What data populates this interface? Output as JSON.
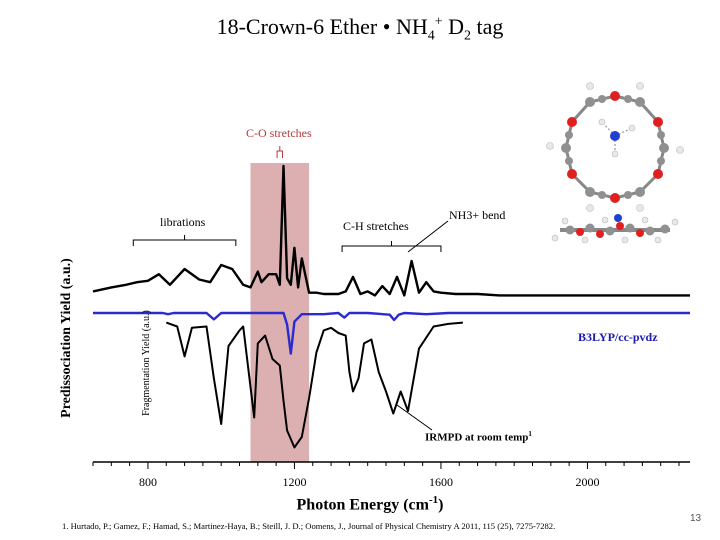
{
  "title": {
    "main": "18-Crown-6 Ether • NH",
    "sub1": "4",
    "sup1": "+",
    "mid": " D",
    "sub2": "2",
    "end": " tag"
  },
  "citation": "1. Hurtado, P.; Gamez, F.; Hamad, S.; Martinez-Haya, B.; Steill, J. D.; Oomens, J., Journal of Physical Chemistry A 2011, 115 (25), 7275-7282.",
  "page_number": "13",
  "chart_data": {
    "type": "line",
    "title": "18-Crown-6 Ether • NH4+ D2 tag",
    "xlabel": "Photon Energy (cm-1)",
    "xlabel_parts": {
      "text": "Photon Energy (cm",
      "sup": "-1",
      "close": ")"
    },
    "ylabel": "Predissociation Yield (a.u.)",
    "ylabel_secondary": "Fragmentation Yield (a.u.)",
    "xlim": [
      650,
      2280
    ],
    "xticks": [
      800,
      1200,
      1600,
      2000
    ],
    "highlight_band": {
      "from": 1080,
      "to": 1240,
      "label": "C-O stretches",
      "color": "#dcb0b0"
    },
    "annotations": [
      {
        "text": "librations",
        "from": 760,
        "to": 1040
      },
      {
        "text": "C-H stretches",
        "from": 1330,
        "to": 1600
      },
      {
        "text": "NH3+ bend",
        "at": 1510
      },
      {
        "text": "B3LYP/cc-pvdz"
      },
      {
        "text": "IRMPD at room temp",
        "sup": "1",
        "at": 1480
      }
    ],
    "series": [
      {
        "name": "Predissociation (D2 tag)",
        "color": "#000000",
        "x": [
          650,
          700,
          740,
          770,
          800,
          830,
          860,
          900,
          940,
          970,
          1000,
          1030,
          1060,
          1080,
          1100,
          1110,
          1130,
          1150,
          1160,
          1170,
          1180,
          1190,
          1200,
          1210,
          1220,
          1240,
          1260,
          1280,
          1300,
          1320,
          1340,
          1360,
          1380,
          1400,
          1420,
          1440,
          1460,
          1480,
          1500,
          1520,
          1540,
          1560,
          1580,
          1600,
          1640,
          1700,
          1760,
          1820,
          1880,
          1940,
          2000,
          2060,
          2120,
          2180,
          2280
        ],
        "y": [
          0.05,
          0.08,
          0.1,
          0.12,
          0.13,
          0.18,
          0.1,
          0.22,
          0.14,
          0.12,
          0.25,
          0.22,
          0.1,
          0.08,
          0.2,
          0.12,
          0.18,
          0.18,
          0.1,
          1.0,
          0.15,
          0.1,
          0.38,
          0.08,
          0.3,
          0.04,
          0.04,
          0.03,
          0.03,
          0.03,
          0.05,
          0.16,
          0.03,
          0.05,
          0.02,
          0.09,
          0.03,
          0.16,
          0.02,
          0.28,
          0.04,
          0.12,
          0.05,
          0.04,
          0.03,
          0.03,
          0.02,
          0.02,
          0.02,
          0.02,
          0.02,
          0.02,
          0.02,
          0.02,
          0.02
        ]
      },
      {
        "name": "B3LYP/cc-pvdz",
        "color": "#2a2ad0",
        "x": [
          650,
          840,
          855,
          870,
          900,
          960,
          980,
          1000,
          1100,
          1170,
          1180,
          1190,
          1200,
          1220,
          1280,
          1320,
          1336,
          1350,
          1400,
          1460,
          1472,
          1485,
          1500,
          1560,
          1620,
          1700,
          2280
        ],
        "y": [
          0,
          0,
          0.02,
          0,
          0,
          0,
          0.11,
          0,
          0,
          0,
          0.2,
          0.7,
          0.15,
          0.02,
          0.02,
          0,
          0.08,
          0,
          0,
          0.03,
          0.12,
          0.03,
          0,
          0.02,
          0,
          0,
          0
        ]
      },
      {
        "name": "IRMPD at room temp",
        "color": "#000000",
        "x": [
          850,
          880,
          900,
          920,
          960,
          980,
          1000,
          1020,
          1050,
          1060,
          1075,
          1090,
          1100,
          1120,
          1140,
          1160,
          1170,
          1180,
          1200,
          1220,
          1240,
          1260,
          1280,
          1300,
          1320,
          1340,
          1350,
          1360,
          1375,
          1390,
          1410,
          1430,
          1450,
          1470,
          1490,
          1510,
          1540,
          1580,
          1620,
          1660
        ],
        "y": [
          0.02,
          0.05,
          0.28,
          0.06,
          0.05,
          0.45,
          0.8,
          0.2,
          0.08,
          0.05,
          0.4,
          0.75,
          0.18,
          0.12,
          0.3,
          0.35,
          0.62,
          0.85,
          0.98,
          0.9,
          0.6,
          0.25,
          0.08,
          0.06,
          0.1,
          0.12,
          0.4,
          0.55,
          0.45,
          0.18,
          0.15,
          0.4,
          0.55,
          0.72,
          0.55,
          0.7,
          0.22,
          0.05,
          0.03,
          0.02
        ]
      }
    ]
  },
  "molecule": {
    "description_label": "18-crown-6 ammonium complex",
    "atom_colors": {
      "carbon": "#909090",
      "oxygen": "#e02020",
      "nitrogen": "#2040d0",
      "hydrogen": "#f0f0f0"
    }
  }
}
